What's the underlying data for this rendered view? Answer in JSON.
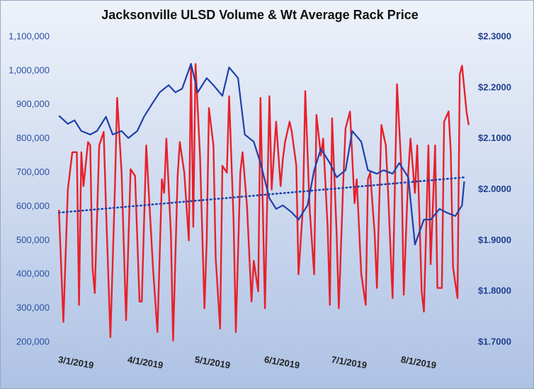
{
  "chart_data": {
    "type": "line",
    "title": "Jacksonville ULSD Volume & Wt Average Rack Price",
    "xlim": [
      "2019-02-22",
      "2019-08-26"
    ],
    "xticks": [
      {
        "value": "2019-03-01",
        "label": "3/1/2019"
      },
      {
        "value": "2019-04-01",
        "label": "4/1/2019"
      },
      {
        "value": "2019-05-01",
        "label": "5/1/2019"
      },
      {
        "value": "2019-06-01",
        "label": "6/1/2019"
      },
      {
        "value": "2019-07-01",
        "label": "7/1/2019"
      },
      {
        "value": "2019-08-01",
        "label": "8/1/2019"
      }
    ],
    "ylim": [
      200000,
      1100000
    ],
    "yticks": [
      {
        "value": 200000,
        "label": "200,000"
      },
      {
        "value": 300000,
        "label": "300,000"
      },
      {
        "value": 400000,
        "label": "400,000"
      },
      {
        "value": 500000,
        "label": "500,000"
      },
      {
        "value": 600000,
        "label": "600,000"
      },
      {
        "value": 700000,
        "label": "700,000"
      },
      {
        "value": 800000,
        "label": "800,000"
      },
      {
        "value": 900000,
        "label": "900,000"
      },
      {
        "value": 1000000,
        "label": "1,000,000"
      },
      {
        "value": 1100000,
        "label": "1,100,000"
      }
    ],
    "y2lim": [
      1.7,
      2.3
    ],
    "y2ticks": [
      {
        "value": 1.7,
        "label": "$1.7000"
      },
      {
        "value": 1.8,
        "label": "$1.8000"
      },
      {
        "value": 1.9,
        "label": "$1.9000"
      },
      {
        "value": 2.0,
        "label": "$2.0000"
      },
      {
        "value": 2.1,
        "label": "$2.1000"
      },
      {
        "value": 2.2,
        "label": "$2.2000"
      },
      {
        "value": 2.3,
        "label": "$2.3000"
      }
    ],
    "grid": false,
    "series": [
      {
        "color": "#e8202a",
        "axis": "y",
        "x": [
          "2019-02-23",
          "2019-02-25",
          "2019-02-27",
          "2019-03-01",
          "2019-03-03",
          "2019-03-04",
          "2019-03-05",
          "2019-03-06",
          "2019-03-08",
          "2019-03-09",
          "2019-03-10",
          "2019-03-11",
          "2019-03-13",
          "2019-03-15",
          "2019-03-16",
          "2019-03-18",
          "2019-03-20",
          "2019-03-21",
          "2019-03-23",
          "2019-03-25",
          "2019-03-27",
          "2019-03-29",
          "2019-03-31",
          "2019-04-01",
          "2019-04-03",
          "2019-04-04",
          "2019-04-06",
          "2019-04-08",
          "2019-04-10",
          "2019-04-11",
          "2019-04-12",
          "2019-04-14",
          "2019-04-15",
          "2019-04-17",
          "2019-04-18",
          "2019-04-20",
          "2019-04-22",
          "2019-04-23",
          "2019-04-24",
          "2019-04-25",
          "2019-04-27",
          "2019-04-29",
          "2019-04-30",
          "2019-05-01",
          "2019-05-03",
          "2019-05-04",
          "2019-05-06",
          "2019-05-07",
          "2019-05-09",
          "2019-05-10",
          "2019-05-12",
          "2019-05-13",
          "2019-05-15",
          "2019-05-16",
          "2019-05-18",
          "2019-05-20",
          "2019-05-21",
          "2019-05-23",
          "2019-05-24",
          "2019-05-26",
          "2019-05-28",
          "2019-05-29",
          "2019-05-31",
          "2019-06-02",
          "2019-06-03",
          "2019-06-04",
          "2019-06-06",
          "2019-06-07",
          "2019-06-09",
          "2019-06-10",
          "2019-06-12",
          "2019-06-13",
          "2019-06-15",
          "2019-06-17",
          "2019-06-18",
          "2019-06-20",
          "2019-06-21",
          "2019-06-23",
          "2019-06-24",
          "2019-06-25",
          "2019-06-27",
          "2019-06-28",
          "2019-06-30",
          "2019-07-01",
          "2019-07-03",
          "2019-07-05",
          "2019-07-06",
          "2019-07-08",
          "2019-07-10",
          "2019-07-11",
          "2019-07-12",
          "2019-07-14",
          "2019-07-15",
          "2019-07-17",
          "2019-07-19",
          "2019-07-20",
          "2019-07-22",
          "2019-07-24",
          "2019-07-26",
          "2019-07-27",
          "2019-07-29",
          "2019-07-30",
          "2019-08-01",
          "2019-08-02",
          "2019-08-04",
          "2019-08-05",
          "2019-08-07",
          "2019-08-08",
          "2019-08-10",
          "2019-08-11",
          "2019-08-13",
          "2019-08-14",
          "2019-08-16",
          "2019-08-17",
          "2019-08-18",
          "2019-08-20",
          "2019-08-21",
          "2019-08-22",
          "2019-08-24",
          "2019-08-25"
        ],
        "values": [
          590000,
          260000,
          650000,
          760000,
          760000,
          310000,
          760000,
          660000,
          790000,
          780000,
          420000,
          345000,
          780000,
          820000,
          600000,
          215000,
          650000,
          920000,
          700000,
          265000,
          710000,
          690000,
          320000,
          320000,
          780000,
          660000,
          420000,
          230000,
          680000,
          640000,
          800000,
          520000,
          205000,
          690000,
          790000,
          700000,
          500000,
          1020000,
          540000,
          1020000,
          750000,
          300000,
          500000,
          890000,
          780000,
          450000,
          240000,
          720000,
          700000,
          925000,
          560000,
          230000,
          700000,
          760000,
          600000,
          320000,
          440000,
          350000,
          920000,
          300000,
          925000,
          650000,
          850000,
          660000,
          740000,
          790000,
          850000,
          820000,
          720000,
          400000,
          600000,
          940000,
          590000,
          400000,
          870000,
          750000,
          800000,
          540000,
          310000,
          860000,
          520000,
          300000,
          680000,
          830000,
          880000,
          610000,
          680000,
          400000,
          310000,
          680000,
          700000,
          520000,
          360000,
          840000,
          780000,
          640000,
          330000,
          960000,
          700000,
          340000,
          700000,
          800000,
          640000,
          780000,
          350000,
          290000,
          780000,
          430000,
          780000,
          360000,
          360000,
          850000,
          880000,
          760000,
          420000,
          330000,
          990000,
          1015000,
          880000,
          840000
        ]
      },
      {
        "color": "#1f3fa8",
        "axis": "y2",
        "x": [
          "2019-02-23",
          "2019-02-27",
          "2019-03-02",
          "2019-03-05",
          "2019-03-09",
          "2019-03-12",
          "2019-03-16",
          "2019-03-19",
          "2019-03-23",
          "2019-03-26",
          "2019-03-30",
          "2019-04-02",
          "2019-04-06",
          "2019-04-09",
          "2019-04-13",
          "2019-04-16",
          "2019-04-19",
          "2019-04-23",
          "2019-04-26",
          "2019-04-30",
          "2019-05-03",
          "2019-05-07",
          "2019-05-10",
          "2019-05-14",
          "2019-05-17",
          "2019-05-21",
          "2019-05-24",
          "2019-05-28",
          "2019-05-31",
          "2019-06-03",
          "2019-06-07",
          "2019-06-10",
          "2019-06-14",
          "2019-06-17",
          "2019-06-20",
          "2019-06-24",
          "2019-06-27",
          "2019-07-01",
          "2019-07-04",
          "2019-07-08",
          "2019-07-11",
          "2019-07-15",
          "2019-07-18",
          "2019-07-22",
          "2019-07-25",
          "2019-07-29",
          "2019-08-01",
          "2019-08-05",
          "2019-08-08",
          "2019-08-12",
          "2019-08-15",
          "2019-08-19",
          "2019-08-22",
          "2019-08-23"
        ],
        "values": [
          2.145,
          2.129,
          2.136,
          2.115,
          2.108,
          2.115,
          2.143,
          2.108,
          2.115,
          2.101,
          2.115,
          2.143,
          2.171,
          2.191,
          2.205,
          2.191,
          2.198,
          2.247,
          2.191,
          2.219,
          2.205,
          2.184,
          2.24,
          2.219,
          2.108,
          2.094,
          2.052,
          1.983,
          1.962,
          1.969,
          1.955,
          1.941,
          1.969,
          2.038,
          2.08,
          2.052,
          2.024,
          2.038,
          2.115,
          2.094,
          2.038,
          2.031,
          2.038,
          2.031,
          2.052,
          2.024,
          1.892,
          1.941,
          1.941,
          1.962,
          1.955,
          1.948,
          1.969,
          2.016
        ]
      }
    ],
    "trendline": {
      "color": "#1f3fa8",
      "axis": "y",
      "x": [
        "2019-02-23",
        "2019-08-23"
      ],
      "values": [
        582000,
        686000
      ]
    }
  }
}
